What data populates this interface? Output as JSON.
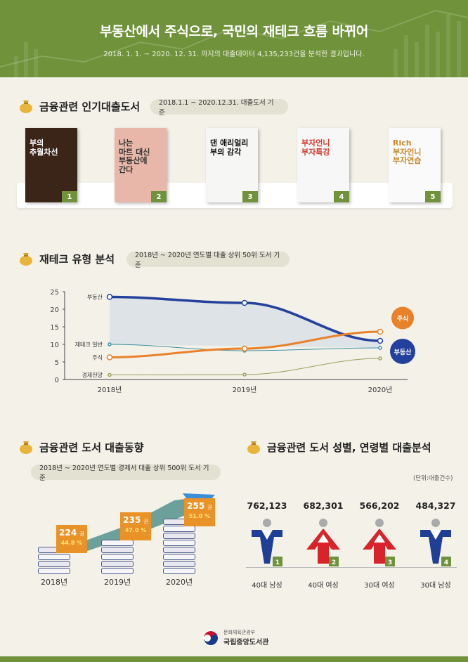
{
  "header": {
    "title": "부동산에서 주식으로, 국민의 재테크 흐름 바뀌어",
    "subtitle": "2018. 1. 1. ~ 2020. 12. 31. 까지의 대출데이터 4,135,233건을 분석한 결과입니다."
  },
  "section1": {
    "title": "금융관련 인기대출도서",
    "note": "2018.1.1 ~ 2020.12.31. 대출도서 기준",
    "books": [
      {
        "rank": "1",
        "title": "부의\n추월차선",
        "bg": "#3b2418",
        "fg": "#ffffff"
      },
      {
        "rank": "2",
        "title": "나는\n마트 대신\n부동산에\n간다",
        "bg": "#e9b7a9",
        "fg": "#333333"
      },
      {
        "rank": "3",
        "title": "댄 애리얼리\n부의 감각",
        "bg": "#f6f6f4",
        "fg": "#111111"
      },
      {
        "rank": "4",
        "title": "부자언니\n부자특강",
        "bg": "#f7f7f7",
        "fg": "#d63b2e"
      },
      {
        "rank": "5",
        "title": "Rich\n부자언니\n부자연습",
        "bg": "#fafafa",
        "fg": "#c9892d"
      }
    ]
  },
  "section2": {
    "title": "재테크 유형 분석",
    "note": "2018년 ~ 2020년 연도별 대출 상위 50위 도서 기준",
    "callouts": {
      "stock": "주식",
      "real_estate": "부동산"
    }
  },
  "chart_data": {
    "type": "line",
    "x": [
      "2018년",
      "2019년",
      "2020년"
    ],
    "ylim": [
      0,
      25
    ],
    "yticks": [
      0,
      5,
      10,
      15,
      20,
      25
    ],
    "series": [
      {
        "name": "부동산",
        "values": [
          23.5,
          21.8,
          11
        ],
        "color": "#23409c"
      },
      {
        "name": "재테크 일반",
        "values": [
          10,
          8.2,
          9
        ],
        "color": "#3f8fa6"
      },
      {
        "name": "주식",
        "values": [
          6.3,
          8.8,
          13.6
        ],
        "color": "#e9812b"
      },
      {
        "name": "경제전망",
        "values": [
          1.3,
          1.4,
          6
        ],
        "color": "#9aa15a"
      }
    ]
  },
  "section3": {
    "title": "금융관련 도서 대출동향",
    "note": "2018년 ~ 2020년 연도별 경제서 대출 상위 500위 도서 기준",
    "items": [
      {
        "year": "2018년",
        "count": "224",
        "unit": "권",
        "pct": "44.8 %"
      },
      {
        "year": "2019년",
        "count": "235",
        "unit": "권",
        "pct": "47.0 %"
      },
      {
        "year": "2020년",
        "count": "255",
        "unit": "권",
        "pct": "51.0 %"
      }
    ]
  },
  "section4": {
    "title": "금융관련 도서 성별, 연령별 대출분석",
    "unit_note": "(단위:대출건수)",
    "items": [
      {
        "value": "762,123",
        "label": "40대 남성",
        "rank": "1",
        "color": "#1f3f96"
      },
      {
        "value": "682,301",
        "label": "40대 여성",
        "rank": "2",
        "color": "#d8232a"
      },
      {
        "value": "566,202",
        "label": "30대 여성",
        "rank": "3",
        "color": "#d8232a"
      },
      {
        "value": "484,327",
        "label": "30대 남성",
        "rank": "4",
        "color": "#1f3f96"
      }
    ]
  },
  "footer": {
    "ministry": "문화체육관광부",
    "library": "국립중앙도서관"
  }
}
